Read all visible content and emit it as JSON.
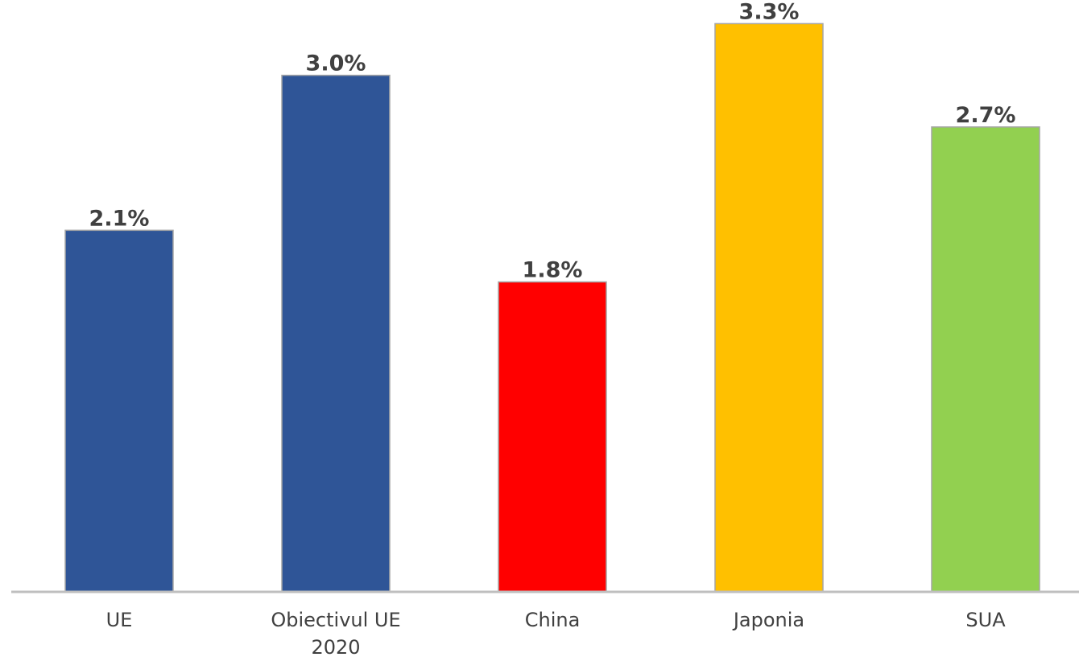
{
  "chart_data": {
    "type": "bar",
    "categories": [
      "UE",
      "Obiectivul UE 2020",
      "China",
      "Japonia",
      "SUA"
    ],
    "category_label_lines": [
      [
        "UE"
      ],
      [
        "Obiectivul UE",
        "2020"
      ],
      [
        "China"
      ],
      [
        "Japonia"
      ],
      [
        "SUA"
      ]
    ],
    "values": [
      2.1,
      3.0,
      1.8,
      3.3,
      2.7
    ],
    "data_labels": [
      "2.1%",
      "3.0%",
      "1.8%",
      "3.3%",
      "2.7%"
    ],
    "bar_colors": [
      "#2F5597",
      "#2F5597",
      "#FF0000",
      "#FFC000",
      "#92D050"
    ],
    "ylim": [
      0,
      3.4
    ],
    "grid": false,
    "legend": "none",
    "axis_color": "#BFBFBF",
    "label_color": "#404040"
  }
}
